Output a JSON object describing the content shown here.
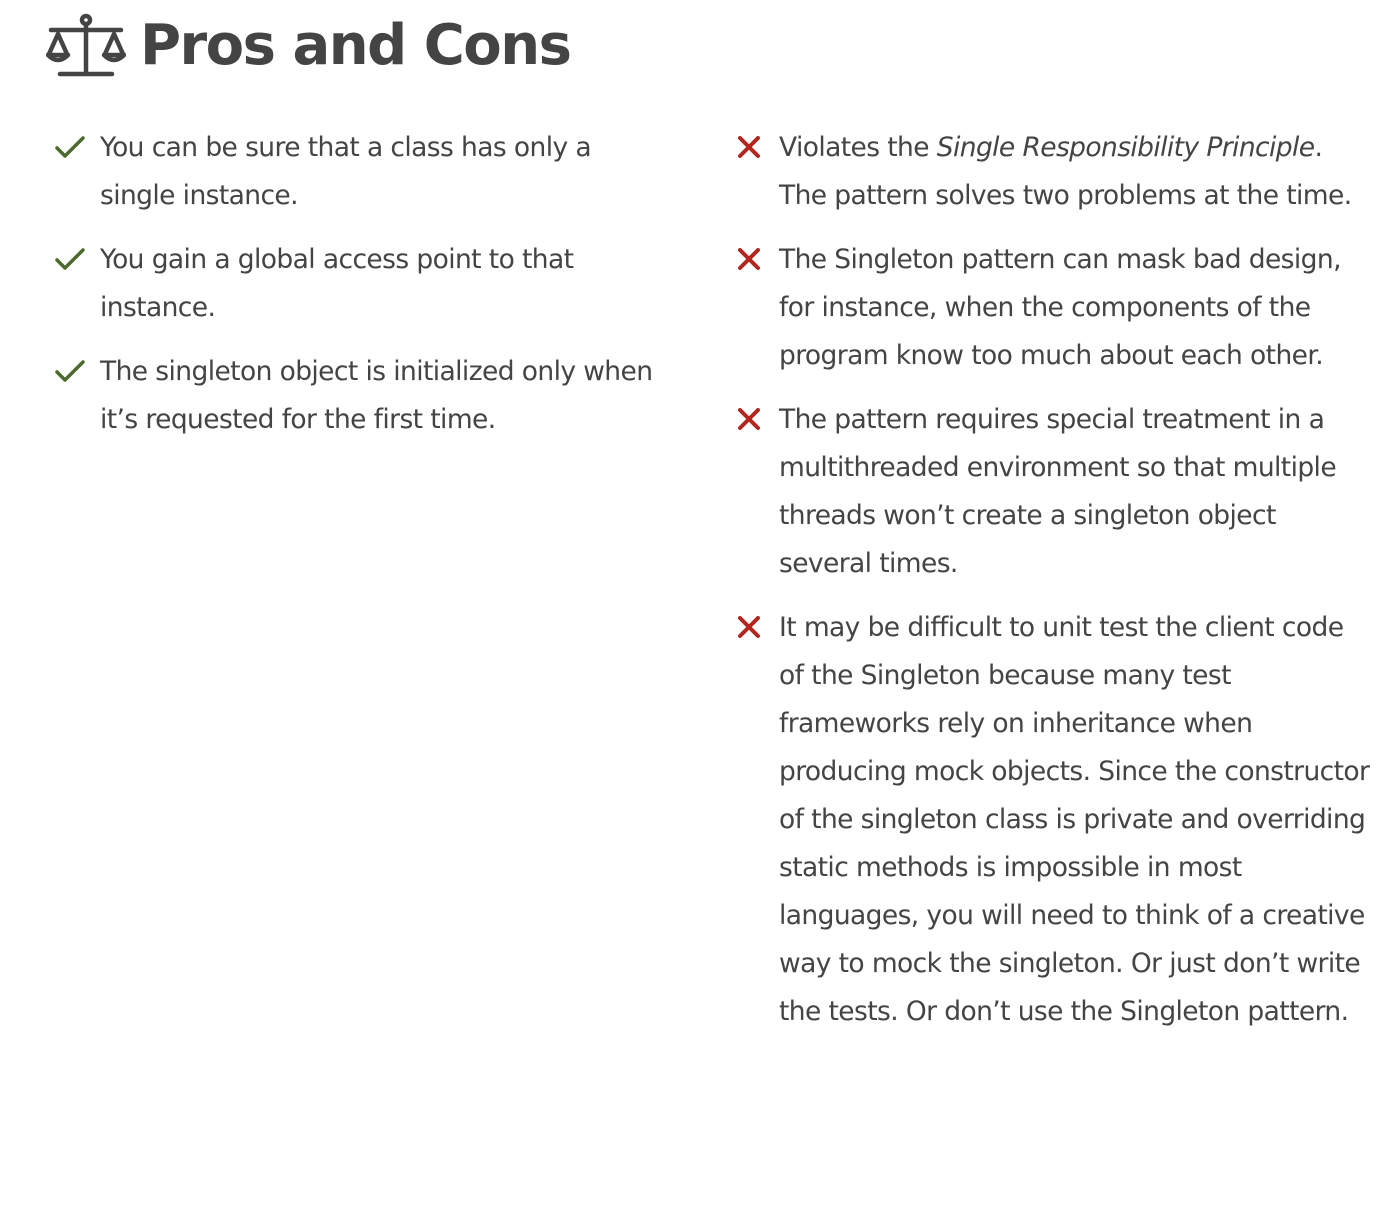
{
  "section": {
    "title": "Pros and Cons",
    "icon": "scales-icon"
  },
  "colors": {
    "text": "#444444",
    "pro_check": "#4a6b2c",
    "con_cross": "#b3261e"
  },
  "pros": [
    {
      "text": "You can be sure that a class has only a single instance."
    },
    {
      "text": "You gain a global access point to that instance."
    },
    {
      "text": "The singleton object is initialized only when it’s requested for the first time."
    }
  ],
  "cons": [
    {
      "text_before": "Violates the ",
      "emphasis": "Single Responsibility Principle",
      "text_after": ". The pattern solves two problems at the time."
    },
    {
      "text": "The Singleton pattern can mask bad design, for instance, when the components of the program know too much about each other."
    },
    {
      "text": "The pattern requires special treatment in a multithreaded environment so that multiple threads won’t create a singleton object several times."
    },
    {
      "text": "It may be difficult to unit test the client code of the Singleton because many test frameworks rely on inheritance when producing mock objects. Since the constructor of the singleton class is private and overriding static methods is impossible in most languages, you will need to think of a creative way to mock the singleton. Or just don’t write the tests. Or don’t use the Singleton pattern."
    }
  ]
}
